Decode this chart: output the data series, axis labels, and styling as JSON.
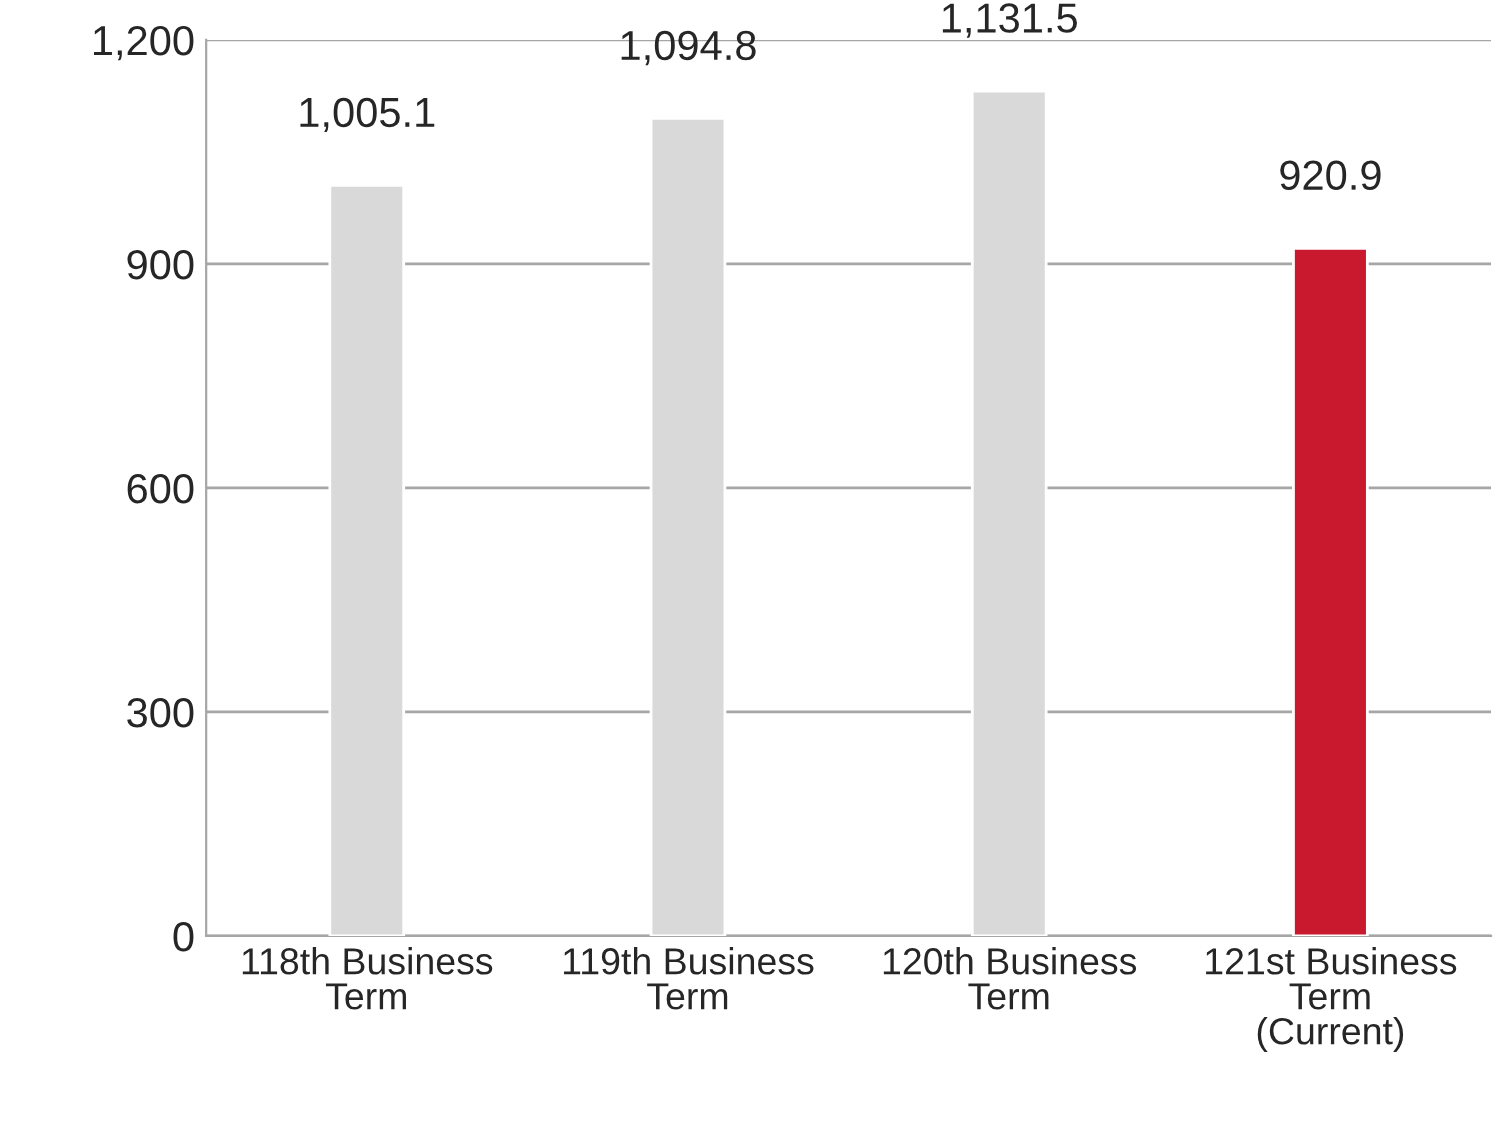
{
  "chart_data": {
    "type": "bar",
    "categories": [
      "118th Business\nTerm",
      "119th Business\nTerm",
      "120th Business\nTerm",
      "121st Business\nTerm\n(Current)"
    ],
    "values": [
      1005.1,
      1094.8,
      1131.5,
      920.9
    ],
    "colors": [
      "#d9d9d9",
      "#d9d9d9",
      "#d9d9d9",
      "#c8192e"
    ],
    "value_labels": [
      "1,005.1",
      "1,094.8",
      "1,131.5",
      "920.9"
    ],
    "ylim": [
      0,
      1200
    ],
    "yticks": [
      0,
      300,
      600,
      900,
      {
        "value": 1200,
        "label": "1,200"
      }
    ],
    "grid": "y"
  }
}
